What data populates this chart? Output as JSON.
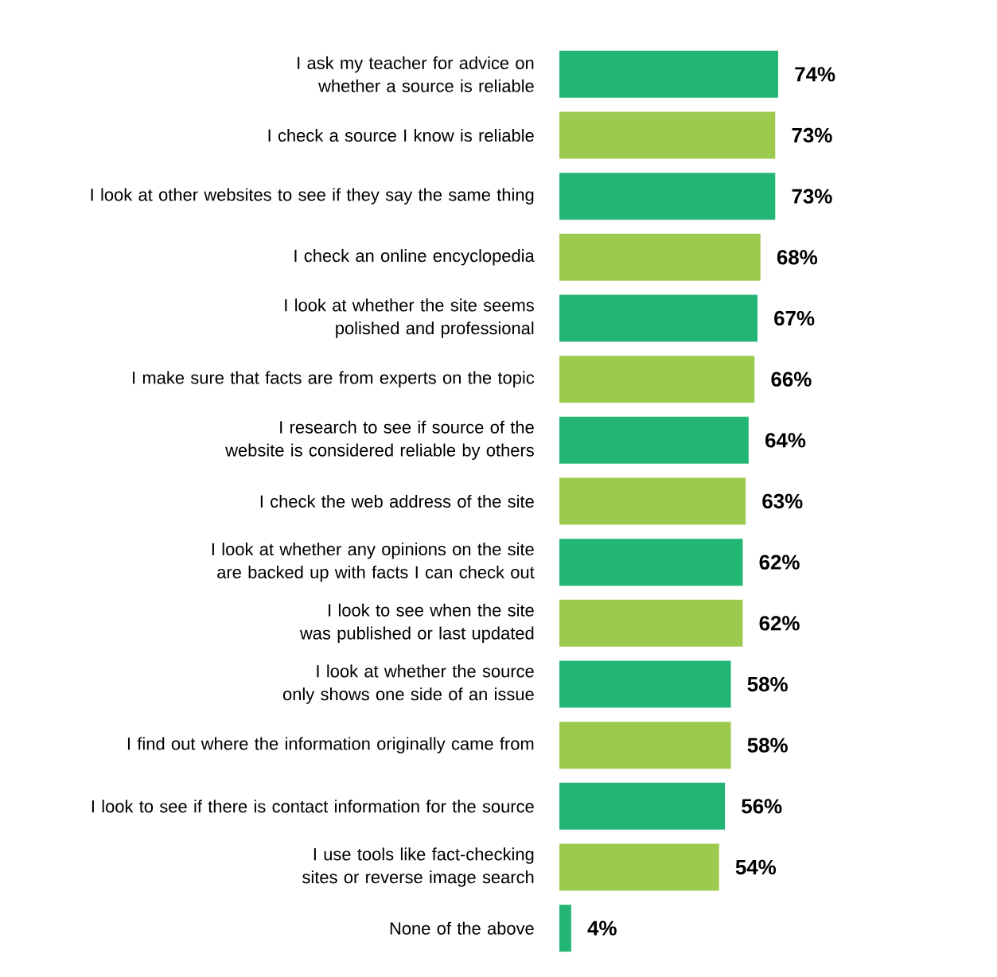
{
  "chart_data": {
    "type": "bar",
    "orientation": "horizontal",
    "categories": [
      "I ask my teacher for advice on whether a source is reliable",
      "I check a source I know is reliable",
      "I look at other websites to see if they say the same thing",
      "I check an online encyclopedia",
      "I look at whether the site seems polished and professional",
      "I make sure that facts are from experts on the topic",
      "I research to see if source of the website is considered reliable by others",
      "I check the web address of the site",
      "I look at whether any opinions on the site are backed up with facts I can check out",
      "I look to see when the site was published or last updated",
      "I look at whether the source only shows one side of an issue",
      "I find out where the information originally came from",
      "I look to see if there is contact information for the source",
      "I use tools like fact-checking sites or reverse image search",
      "None of the above"
    ],
    "values": [
      74,
      73,
      73,
      68,
      67,
      66,
      64,
      63,
      62,
      62,
      58,
      58,
      56,
      54,
      4
    ],
    "colors": [
      "#22b573",
      "#9bca4f",
      "#22b573",
      "#9bca4f",
      "#22b573",
      "#9bca4f",
      "#22b573",
      "#9bca4f",
      "#22b573",
      "#9bca4f",
      "#22b573",
      "#9bca4f",
      "#22b573",
      "#9bca4f",
      "#22b573"
    ],
    "value_labels": [
      "74%",
      "73%",
      "73%",
      "68%",
      "67%",
      "66%",
      "64%",
      "63%",
      "62%",
      "62%",
      "58%",
      "58%",
      "56%",
      "54%",
      "4%"
    ]
  }
}
